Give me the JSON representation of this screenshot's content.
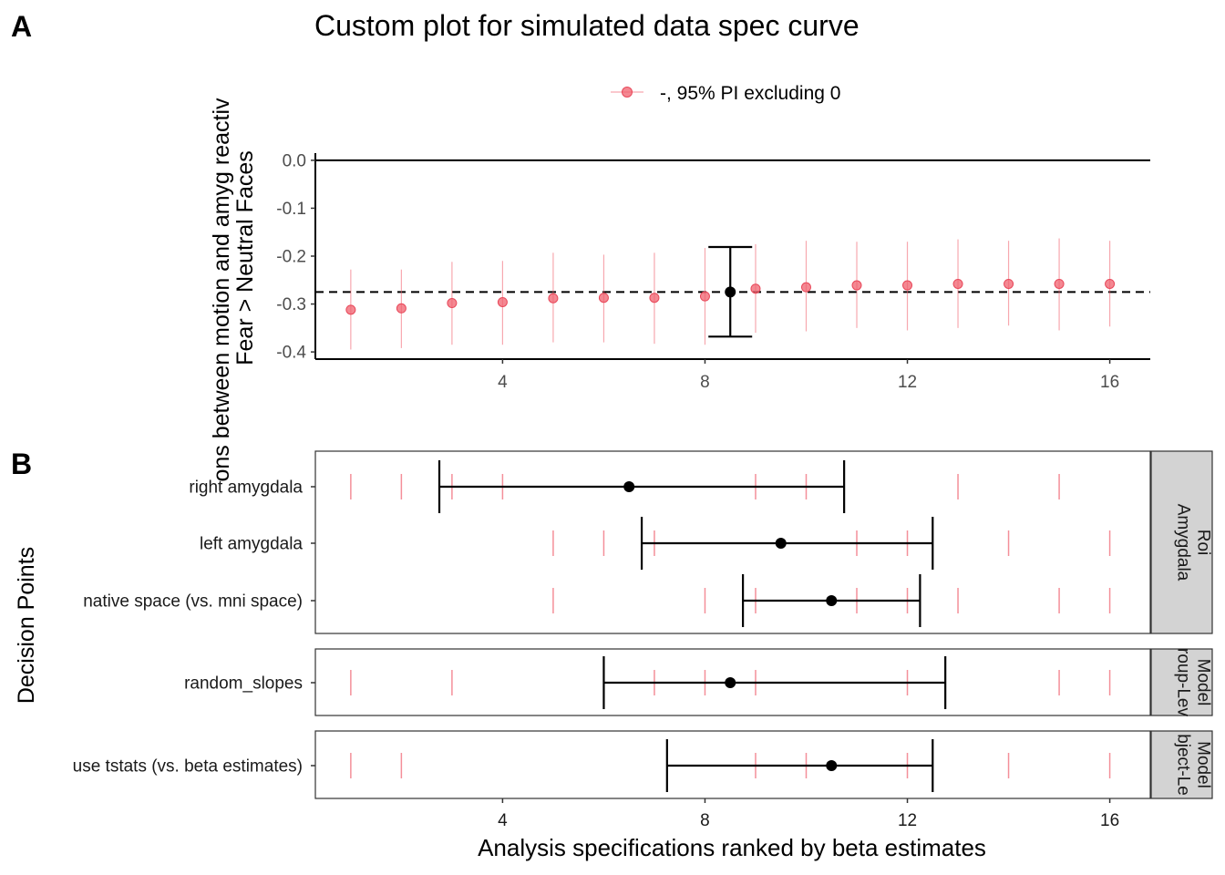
{
  "figure": {
    "panel_a_tag": "A",
    "panel_b_tag": "B",
    "colors": {
      "points": "#f0606e",
      "summary": "#000000",
      "strip": "#d3d3d3"
    }
  },
  "chart_data": [
    {
      "type": "scatter",
      "title": "Custom plot for simulated data spec curve",
      "ylabel_line1": "ons between motion and amyg reactiv",
      "ylabel_line2": "Fear > Neutral Faces",
      "xlabel": "",
      "legend": {
        "label": "-, 95% PI excluding 0",
        "position": "top"
      },
      "xlim": [
        0.3,
        16.8
      ],
      "ylim": [
        -0.415,
        0.015
      ],
      "x_ticks": [
        4,
        8,
        12,
        16
      ],
      "y_ticks": [
        0.0,
        -0.1,
        -0.2,
        -0.3,
        -0.4
      ],
      "y_tick_labels": [
        "0.0",
        "-0.1",
        "-0.2",
        "-0.3",
        "-0.4"
      ],
      "reference_line_y": 0,
      "dashed_line_y": -0.275,
      "grid": false,
      "series": [
        {
          "name": "-, 95% PI excluding 0",
          "points": [
            {
              "x": 1,
              "y": -0.312,
              "lo": -0.395,
              "hi": -0.228
            },
            {
              "x": 2,
              "y": -0.309,
              "lo": -0.392,
              "hi": -0.228
            },
            {
              "x": 3,
              "y": -0.298,
              "lo": -0.385,
              "hi": -0.212
            },
            {
              "x": 4,
              "y": -0.296,
              "lo": -0.385,
              "hi": -0.21
            },
            {
              "x": 5,
              "y": -0.288,
              "lo": -0.38,
              "hi": -0.193
            },
            {
              "x": 6,
              "y": -0.287,
              "lo": -0.38,
              "hi": -0.197
            },
            {
              "x": 7,
              "y": -0.287,
              "lo": -0.383,
              "hi": -0.193
            },
            {
              "x": 8,
              "y": -0.284,
              "lo": -0.385,
              "hi": -0.183
            },
            {
              "x": 9,
              "y": -0.268,
              "lo": -0.36,
              "hi": -0.175
            },
            {
              "x": 10,
              "y": -0.265,
              "lo": -0.357,
              "hi": -0.168
            },
            {
              "x": 11,
              "y": -0.261,
              "lo": -0.35,
              "hi": -0.17
            },
            {
              "x": 12,
              "y": -0.261,
              "lo": -0.355,
              "hi": -0.17
            },
            {
              "x": 13,
              "y": -0.258,
              "lo": -0.35,
              "hi": -0.165
            },
            {
              "x": 14,
              "y": -0.258,
              "lo": -0.345,
              "hi": -0.168
            },
            {
              "x": 15,
              "y": -0.258,
              "lo": -0.355,
              "hi": -0.163
            },
            {
              "x": 16,
              "y": -0.258,
              "lo": -0.347,
              "hi": -0.168
            }
          ]
        }
      ],
      "summary": {
        "x": 8.5,
        "y": -0.275,
        "lo": -0.368,
        "hi": -0.181
      }
    },
    {
      "type": "scatter",
      "title": "",
      "ylabel": "Decision Points",
      "xlabel": "Analysis specifications ranked by beta estimates",
      "xlim": [
        0.3,
        16.8
      ],
      "x_ticks": [
        4,
        8,
        12,
        16
      ],
      "grid": false,
      "facets": [
        {
          "strip": [
            "Amygdala",
            "Roi"
          ],
          "rows": [
            {
              "label": "right amygdala",
              "ticks": [
                1,
                2,
                3,
                4,
                9,
                10,
                13,
                15
              ],
              "mean": 6.5,
              "lo": 2.75,
              "hi": 10.75
            },
            {
              "label": "left amygdala",
              "ticks": [
                5,
                6,
                7,
                11,
                12,
                14,
                16
              ],
              "mean": 9.5,
              "lo": 6.75,
              "hi": 12.5
            },
            {
              "label": "native space (vs. mni space)",
              "ticks": [
                5,
                8,
                9,
                11,
                12,
                13,
                15,
                16
              ],
              "mean": 10.5,
              "lo": 8.75,
              "hi": 12.25
            }
          ]
        },
        {
          "strip": [
            "roup-Lev",
            "Model"
          ],
          "rows": [
            {
              "label": "random_slopes",
              "ticks": [
                1,
                3,
                7,
                8,
                9,
                12,
                15,
                16
              ],
              "mean": 8.5,
              "lo": 6.0,
              "hi": 12.75
            }
          ]
        },
        {
          "strip": [
            "bject-Le",
            "Model"
          ],
          "rows": [
            {
              "label": "use tstats (vs. beta estimates)",
              "ticks": [
                1,
                2,
                9,
                10,
                12,
                14,
                16
              ],
              "mean": 10.5,
              "lo": 7.25,
              "hi": 12.5
            }
          ]
        }
      ]
    }
  ]
}
